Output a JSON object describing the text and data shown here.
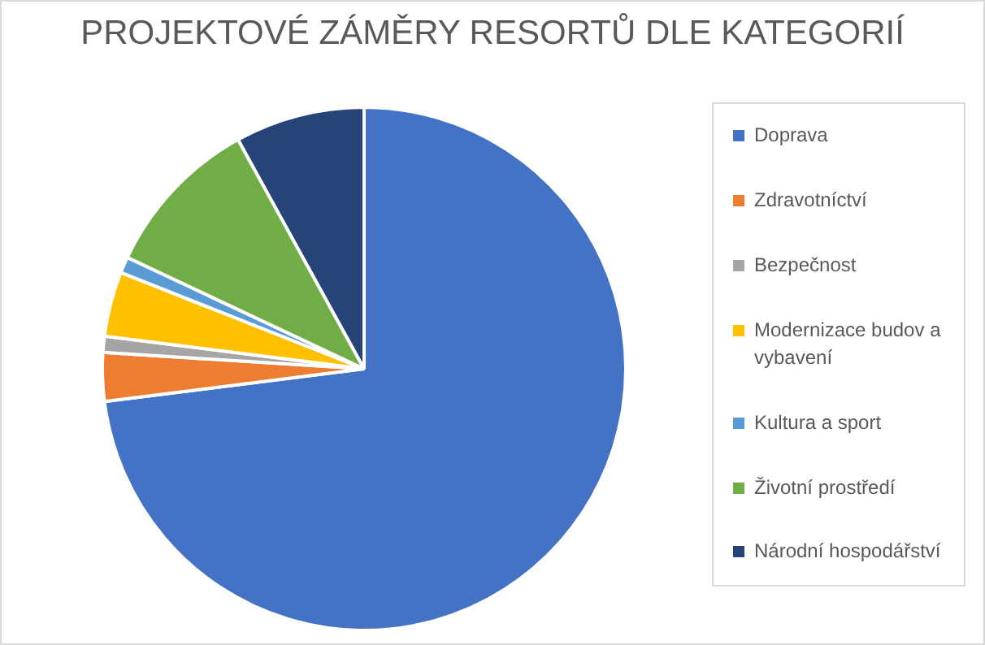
{
  "chart_data": {
    "type": "pie",
    "title": "PROJEKTOVÉ ZÁMĚRY RESORTŮ DLE KATEGORIÍ",
    "categories": [
      "Doprava",
      "Zdravotníctví",
      "Bezpečnost",
      "Modernizace budov a vybavení",
      "Kultura a sport",
      "Životní prostředí",
      "Národní hospodářství"
    ],
    "values": [
      73,
      3,
      1,
      4,
      1,
      10,
      8
    ],
    "colors": [
      "#4472c4",
      "#ed7d31",
      "#a5a5a5",
      "#ffc000",
      "#5b9bd5",
      "#70ad47",
      "#264478"
    ],
    "legend": "right"
  }
}
